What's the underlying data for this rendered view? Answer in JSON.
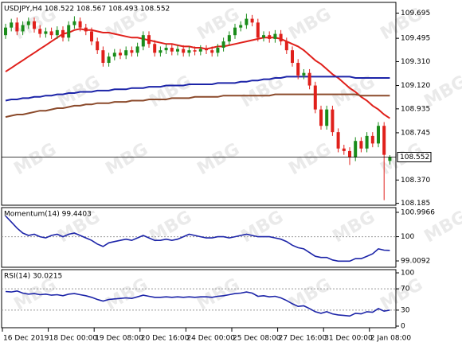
{
  "watermark": "MBG",
  "chart_data": [
    {
      "type": "candlestick",
      "title": "USDJPY,H4 108.522 108.567 108.493 108.552",
      "categories": [
        "16 Dec 2019",
        null,
        null,
        null,
        null,
        null,
        null,
        null,
        "18 Dec 00:00",
        null,
        null,
        null,
        null,
        null,
        null,
        null,
        "19 Dec 08:00",
        null,
        null,
        null,
        null,
        null,
        null,
        null,
        "20 Dec 16:00",
        null,
        null,
        null,
        null,
        null,
        null,
        null,
        "24 Dec 00:00",
        null,
        null,
        null,
        null,
        null,
        null,
        null,
        "25 Dec 08:00",
        null,
        null,
        null,
        null,
        null,
        null,
        null,
        "27 Dec 16:00",
        null,
        null,
        null,
        null,
        null,
        null,
        null,
        "31 Dec 00:00",
        null,
        null,
        null,
        null,
        null,
        null,
        null,
        "2 Jan 08:00",
        null,
        null,
        null
      ],
      "open": [
        109.52,
        109.58,
        109.62,
        109.55,
        109.6,
        109.63,
        109.57,
        109.53,
        109.55,
        109.52,
        109.56,
        109.5,
        109.6,
        109.63,
        109.58,
        109.55,
        109.47,
        109.4,
        109.3,
        109.35,
        109.38,
        109.36,
        109.4,
        109.38,
        109.43,
        109.52,
        109.45,
        109.38,
        109.4,
        109.42,
        109.39,
        109.41,
        109.38,
        109.4,
        109.39,
        109.41,
        109.4,
        109.38,
        109.42,
        109.47,
        109.52,
        109.58,
        109.6,
        109.65,
        109.62,
        109.5,
        109.52,
        109.49,
        109.53,
        109.47,
        109.4,
        109.3,
        109.2,
        109.22,
        109.12,
        108.93,
        108.8,
        108.93,
        108.75,
        108.62,
        108.6,
        108.55,
        108.68,
        108.62,
        108.72,
        108.66,
        108.8,
        108.522
      ],
      "high": [
        109.61,
        109.65,
        109.66,
        109.63,
        109.66,
        109.66,
        109.6,
        109.58,
        109.58,
        109.59,
        109.59,
        109.63,
        109.67,
        109.66,
        109.61,
        109.58,
        109.5,
        109.43,
        109.38,
        109.41,
        109.41,
        109.43,
        109.43,
        109.46,
        109.55,
        109.55,
        109.48,
        109.43,
        109.45,
        109.45,
        109.44,
        109.44,
        109.43,
        109.43,
        109.44,
        109.44,
        109.43,
        109.45,
        109.5,
        109.55,
        109.61,
        109.63,
        109.69,
        109.68,
        109.65,
        109.55,
        109.55,
        109.56,
        109.56,
        109.5,
        109.43,
        109.33,
        109.25,
        109.25,
        109.15,
        108.96,
        108.96,
        108.96,
        108.78,
        108.65,
        108.63,
        108.71,
        108.71,
        108.75,
        108.75,
        108.83,
        108.83,
        108.567
      ],
      "low": [
        109.49,
        109.55,
        109.52,
        109.52,
        109.57,
        109.54,
        109.5,
        109.5,
        109.49,
        109.49,
        109.47,
        109.47,
        109.57,
        109.55,
        109.52,
        109.44,
        109.37,
        109.27,
        109.27,
        109.32,
        109.33,
        109.33,
        109.35,
        109.35,
        109.4,
        109.42,
        109.35,
        109.35,
        109.37,
        109.36,
        109.36,
        109.35,
        109.35,
        109.36,
        109.36,
        109.37,
        109.35,
        109.35,
        109.39,
        109.44,
        109.49,
        109.55,
        109.57,
        109.59,
        109.47,
        109.47,
        109.46,
        109.46,
        109.44,
        109.37,
        109.27,
        109.17,
        109.17,
        109.09,
        108.9,
        108.77,
        108.77,
        108.72,
        108.59,
        108.57,
        108.49,
        108.52,
        108.59,
        108.59,
        108.63,
        108.63,
        108.21,
        108.493
      ],
      "close": [
        109.58,
        109.62,
        109.55,
        109.6,
        109.63,
        109.57,
        109.53,
        109.55,
        109.52,
        109.56,
        109.5,
        109.6,
        109.63,
        109.58,
        109.55,
        109.47,
        109.4,
        109.3,
        109.35,
        109.38,
        109.36,
        109.4,
        109.38,
        109.43,
        109.52,
        109.45,
        109.38,
        109.4,
        109.42,
        109.39,
        109.41,
        109.38,
        109.4,
        109.39,
        109.41,
        109.4,
        109.38,
        109.42,
        109.47,
        109.52,
        109.58,
        109.6,
        109.65,
        109.62,
        109.5,
        109.52,
        109.49,
        109.53,
        109.47,
        109.4,
        109.3,
        109.2,
        109.22,
        109.12,
        108.93,
        108.8,
        108.93,
        108.75,
        108.62,
        108.6,
        108.55,
        108.68,
        108.62,
        108.72,
        108.66,
        108.8,
        108.57,
        108.552
      ],
      "up_color": "#1a8c1a",
      "down_color": "#e0201b",
      "lines": [
        {
          "color": "#e0201b",
          "values": [
            109.23,
            109.26,
            109.29,
            109.32,
            109.35,
            109.38,
            109.41,
            109.44,
            109.47,
            109.5,
            109.53,
            109.54,
            109.56,
            109.57,
            109.56,
            109.56,
            109.55,
            109.54,
            109.54,
            109.53,
            109.52,
            109.51,
            109.5,
            109.5,
            109.49,
            109.48,
            109.47,
            109.46,
            109.45,
            109.45,
            109.44,
            109.43,
            109.43,
            109.42,
            109.42,
            109.41,
            109.42,
            109.43,
            109.43,
            109.44,
            109.45,
            109.46,
            109.47,
            109.48,
            109.49,
            109.5,
            109.5,
            109.5,
            109.49,
            109.47,
            109.45,
            109.43,
            109.4,
            109.36,
            109.32,
            109.29,
            109.25,
            109.21,
            109.18,
            109.14,
            109.1,
            109.07,
            109.03,
            109.0,
            108.96,
            108.93,
            108.89,
            108.86
          ]
        },
        {
          "color": "#1c24a8",
          "values": [
            109.0,
            109.01,
            109.01,
            109.02,
            109.02,
            109.03,
            109.03,
            109.04,
            109.04,
            109.05,
            109.05,
            109.06,
            109.06,
            109.07,
            109.07,
            109.07,
            109.08,
            109.08,
            109.08,
            109.09,
            109.09,
            109.09,
            109.1,
            109.1,
            109.1,
            109.11,
            109.11,
            109.11,
            109.12,
            109.12,
            109.12,
            109.12,
            109.13,
            109.13,
            109.13,
            109.13,
            109.13,
            109.14,
            109.14,
            109.14,
            109.14,
            109.15,
            109.15,
            109.16,
            109.16,
            109.17,
            109.17,
            109.18,
            109.18,
            109.19,
            109.19,
            109.19,
            109.19,
            109.19,
            109.19,
            109.19,
            109.19,
            109.19,
            109.19,
            109.19,
            109.19,
            109.18,
            109.18,
            109.18,
            109.18,
            109.18,
            109.18,
            109.18
          ]
        },
        {
          "color": "#8b4a2b",
          "values": [
            108.87,
            108.88,
            108.89,
            108.89,
            108.9,
            108.91,
            108.92,
            108.92,
            108.93,
            108.94,
            108.94,
            108.95,
            108.96,
            108.96,
            108.97,
            108.97,
            108.98,
            108.98,
            108.98,
            108.99,
            108.99,
            108.99,
            109.0,
            109.0,
            109.0,
            109.01,
            109.01,
            109.01,
            109.01,
            109.02,
            109.02,
            109.02,
            109.02,
            109.03,
            109.03,
            109.03,
            109.03,
            109.03,
            109.04,
            109.04,
            109.04,
            109.04,
            109.04,
            109.04,
            109.04,
            109.04,
            109.04,
            109.05,
            109.05,
            109.05,
            109.05,
            109.05,
            109.05,
            109.05,
            109.05,
            109.05,
            109.05,
            109.05,
            109.05,
            109.05,
            109.05,
            109.05,
            109.04,
            109.04,
            109.04,
            109.04,
            109.04,
            109.04
          ]
        }
      ],
      "current_price": 108.552,
      "ylim": [
        108.17,
        109.78
      ],
      "yticks": [
        109.695,
        109.495,
        {
          "value": 109.31,
          "label": "109.310"
        },
        {
          "value": 109.12,
          "label": "109.120"
        },
        108.935,
        108.745,
        {
          "value": 108.37,
          "label": "108.370"
        },
        108.185
      ]
    },
    {
      "type": "line",
      "title": "Momentum(14) 99.4403",
      "color": "#1c24a8",
      "values": [
        100.85,
        100.6,
        100.35,
        100.15,
        100.05,
        100.1,
        100.0,
        99.95,
        100.05,
        100.1,
        100.0,
        100.1,
        100.15,
        100.05,
        99.95,
        99.85,
        99.7,
        99.6,
        99.75,
        99.8,
        99.85,
        99.9,
        99.85,
        99.95,
        100.05,
        99.95,
        99.85,
        99.85,
        99.9,
        99.85,
        99.9,
        100.0,
        100.1,
        100.05,
        100.0,
        99.95,
        99.95,
        100.0,
        100.0,
        99.95,
        100.0,
        100.05,
        100.1,
        100.05,
        100.0,
        100.0,
        100.0,
        99.95,
        99.9,
        99.8,
        99.65,
        99.55,
        99.5,
        99.35,
        99.2,
        99.15,
        99.15,
        99.05,
        99.0,
        99.0,
        99.0,
        99.1,
        99.1,
        99.2,
        99.3,
        99.5,
        99.45,
        99.44
      ],
      "levels": [
        100
      ],
      "ylim": [
        98.75,
        101.19
      ],
      "yticks": [
        100.9966,
        100,
        99.0092
      ]
    },
    {
      "type": "line",
      "title": "RSI(14) 30.0215",
      "color": "#1c24a8",
      "values": [
        65,
        64,
        66,
        62,
        60,
        61,
        59,
        60,
        58,
        59,
        57,
        60,
        61,
        59,
        57,
        54,
        50,
        47,
        50,
        51,
        52,
        53,
        52,
        55,
        58,
        56,
        54,
        54,
        55,
        54,
        55,
        54,
        55,
        54,
        55,
        55,
        54,
        56,
        57,
        59,
        61,
        62,
        64,
        62,
        56,
        57,
        55,
        56,
        53,
        48,
        42,
        37,
        38,
        33,
        27,
        24,
        27,
        23,
        21,
        20,
        19,
        24,
        23,
        27,
        26,
        33,
        28,
        30.02
      ],
      "levels": [
        70,
        30
      ],
      "ylim": [
        -3,
        106
      ],
      "yticks": [
        100,
        70,
        30,
        0
      ]
    }
  ]
}
